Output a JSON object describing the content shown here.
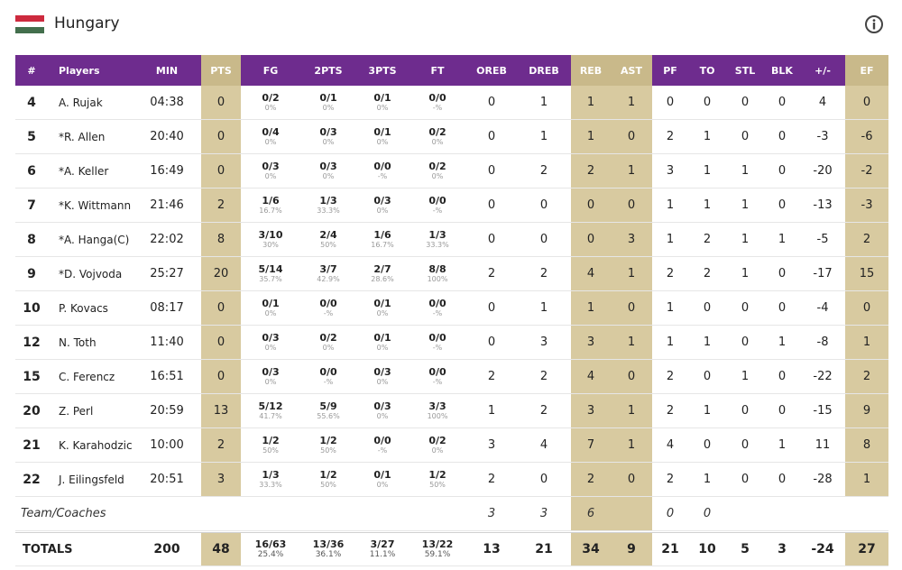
{
  "team": {
    "name": "Hungary",
    "flag_colors": [
      "#cd2a3e",
      "#ffffff",
      "#436f4d"
    ]
  },
  "colors": {
    "header": "#6e2c8e",
    "highlight": "#d8caa0"
  },
  "columns": [
    "#",
    "Players",
    "MIN",
    "PTS",
    "FG",
    "2PTS",
    "3PTS",
    "FT",
    "OREB",
    "DREB",
    "REB",
    "AST",
    "PF",
    "TO",
    "STL",
    "BLK",
    "+/-",
    "EF"
  ],
  "players": [
    {
      "num": "4",
      "name": "A. Rujak",
      "min": "04:38",
      "pts": "0",
      "fg": "0/2",
      "fg_pct": "0%",
      "p2": "0/1",
      "p2_pct": "0%",
      "p3": "0/1",
      "p3_pct": "0%",
      "ft": "0/0",
      "ft_pct": "-%",
      "oreb": "0",
      "dreb": "1",
      "reb": "1",
      "ast": "1",
      "pf": "0",
      "to": "0",
      "stl": "0",
      "blk": "0",
      "pm": "4",
      "ef": "0"
    },
    {
      "num": "5",
      "name": "*R. Allen",
      "min": "20:40",
      "pts": "0",
      "fg": "0/4",
      "fg_pct": "0%",
      "p2": "0/3",
      "p2_pct": "0%",
      "p3": "0/1",
      "p3_pct": "0%",
      "ft": "0/2",
      "ft_pct": "0%",
      "oreb": "0",
      "dreb": "1",
      "reb": "1",
      "ast": "0",
      "pf": "2",
      "to": "1",
      "stl": "0",
      "blk": "0",
      "pm": "-3",
      "ef": "-6"
    },
    {
      "num": "6",
      "name": "*A. Keller",
      "min": "16:49",
      "pts": "0",
      "fg": "0/3",
      "fg_pct": "0%",
      "p2": "0/3",
      "p2_pct": "0%",
      "p3": "0/0",
      "p3_pct": "-%",
      "ft": "0/2",
      "ft_pct": "0%",
      "oreb": "0",
      "dreb": "2",
      "reb": "2",
      "ast": "1",
      "pf": "3",
      "to": "1",
      "stl": "1",
      "blk": "0",
      "pm": "-20",
      "ef": "-2"
    },
    {
      "num": "7",
      "name": "*K. Wittmann",
      "min": "21:46",
      "pts": "2",
      "fg": "1/6",
      "fg_pct": "16.7%",
      "p2": "1/3",
      "p2_pct": "33.3%",
      "p3": "0/3",
      "p3_pct": "0%",
      "ft": "0/0",
      "ft_pct": "-%",
      "oreb": "0",
      "dreb": "0",
      "reb": "0",
      "ast": "0",
      "pf": "1",
      "to": "1",
      "stl": "1",
      "blk": "0",
      "pm": "-13",
      "ef": "-3"
    },
    {
      "num": "8",
      "name": "*A. Hanga(C)",
      "min": "22:02",
      "pts": "8",
      "fg": "3/10",
      "fg_pct": "30%",
      "p2": "2/4",
      "p2_pct": "50%",
      "p3": "1/6",
      "p3_pct": "16.7%",
      "ft": "1/3",
      "ft_pct": "33.3%",
      "oreb": "0",
      "dreb": "0",
      "reb": "0",
      "ast": "3",
      "pf": "1",
      "to": "2",
      "stl": "1",
      "blk": "1",
      "pm": "-5",
      "ef": "2"
    },
    {
      "num": "9",
      "name": "*D. Vojvoda",
      "min": "25:27",
      "pts": "20",
      "fg": "5/14",
      "fg_pct": "35.7%",
      "p2": "3/7",
      "p2_pct": "42.9%",
      "p3": "2/7",
      "p3_pct": "28.6%",
      "ft": "8/8",
      "ft_pct": "100%",
      "oreb": "2",
      "dreb": "2",
      "reb": "4",
      "ast": "1",
      "pf": "2",
      "to": "2",
      "stl": "1",
      "blk": "0",
      "pm": "-17",
      "ef": "15"
    },
    {
      "num": "10",
      "name": "P. Kovacs",
      "min": "08:17",
      "pts": "0",
      "fg": "0/1",
      "fg_pct": "0%",
      "p2": "0/0",
      "p2_pct": "-%",
      "p3": "0/1",
      "p3_pct": "0%",
      "ft": "0/0",
      "ft_pct": "-%",
      "oreb": "0",
      "dreb": "1",
      "reb": "1",
      "ast": "0",
      "pf": "1",
      "to": "0",
      "stl": "0",
      "blk": "0",
      "pm": "-4",
      "ef": "0"
    },
    {
      "num": "12",
      "name": "N. Toth",
      "min": "11:40",
      "pts": "0",
      "fg": "0/3",
      "fg_pct": "0%",
      "p2": "0/2",
      "p2_pct": "0%",
      "p3": "0/1",
      "p3_pct": "0%",
      "ft": "0/0",
      "ft_pct": "-%",
      "oreb": "0",
      "dreb": "3",
      "reb": "3",
      "ast": "1",
      "pf": "1",
      "to": "1",
      "stl": "0",
      "blk": "1",
      "pm": "-8",
      "ef": "1"
    },
    {
      "num": "15",
      "name": "C. Ferencz",
      "min": "16:51",
      "pts": "0",
      "fg": "0/3",
      "fg_pct": "0%",
      "p2": "0/0",
      "p2_pct": "-%",
      "p3": "0/3",
      "p3_pct": "0%",
      "ft": "0/0",
      "ft_pct": "-%",
      "oreb": "2",
      "dreb": "2",
      "reb": "4",
      "ast": "0",
      "pf": "2",
      "to": "0",
      "stl": "1",
      "blk": "0",
      "pm": "-22",
      "ef": "2"
    },
    {
      "num": "20",
      "name": "Z. Perl",
      "min": "20:59",
      "pts": "13",
      "fg": "5/12",
      "fg_pct": "41.7%",
      "p2": "5/9",
      "p2_pct": "55.6%",
      "p3": "0/3",
      "p3_pct": "0%",
      "ft": "3/3",
      "ft_pct": "100%",
      "oreb": "1",
      "dreb": "2",
      "reb": "3",
      "ast": "1",
      "pf": "2",
      "to": "1",
      "stl": "0",
      "blk": "0",
      "pm": "-15",
      "ef": "9"
    },
    {
      "num": "21",
      "name": "K. Karahodzic",
      "min": "10:00",
      "pts": "2",
      "fg": "1/2",
      "fg_pct": "50%",
      "p2": "1/2",
      "p2_pct": "50%",
      "p3": "0/0",
      "p3_pct": "-%",
      "ft": "0/2",
      "ft_pct": "0%",
      "oreb": "3",
      "dreb": "4",
      "reb": "7",
      "ast": "1",
      "pf": "4",
      "to": "0",
      "stl": "0",
      "blk": "1",
      "pm": "11",
      "ef": "8"
    },
    {
      "num": "22",
      "name": "J. Eilingsfeld",
      "min": "20:51",
      "pts": "3",
      "fg": "1/3",
      "fg_pct": "33.3%",
      "p2": "1/2",
      "p2_pct": "50%",
      "p3": "0/1",
      "p3_pct": "0%",
      "ft": "1/2",
      "ft_pct": "50%",
      "oreb": "2",
      "dreb": "0",
      "reb": "2",
      "ast": "0",
      "pf": "2",
      "to": "1",
      "stl": "0",
      "blk": "0",
      "pm": "-28",
      "ef": "1"
    }
  ],
  "coaches": {
    "label": "Team/Coaches",
    "oreb": "3",
    "dreb": "3",
    "reb": "6",
    "pf": "0",
    "to": "0"
  },
  "totals": {
    "label": "TOTALS",
    "min": "200",
    "pts": "48",
    "fg": "16/63",
    "fg_pct": "25.4%",
    "p2": "13/36",
    "p2_pct": "36.1%",
    "p3": "3/27",
    "p3_pct": "11.1%",
    "ft": "13/22",
    "ft_pct": "59.1%",
    "oreb": "13",
    "dreb": "21",
    "reb": "34",
    "ast": "9",
    "pf": "21",
    "to": "10",
    "stl": "5",
    "blk": "3",
    "pm": "-24",
    "ef": "27"
  }
}
